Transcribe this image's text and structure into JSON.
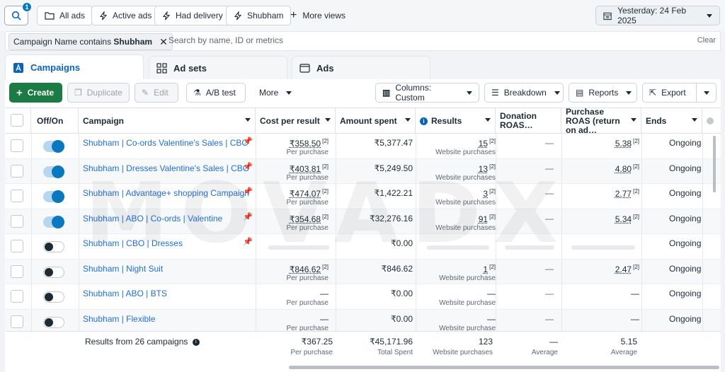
{
  "topbar": {
    "search_badge": "1",
    "chips": [
      {
        "label": "All ads",
        "icon": "folder-icon"
      },
      {
        "label": "Active ads",
        "icon": "lightning-icon"
      },
      {
        "label": "Had delivery",
        "icon": "lightning-icon"
      },
      {
        "label": "Shubham",
        "icon": "lightning-icon"
      }
    ],
    "more_views": "More views",
    "date": "Yesterday: 24 Feb 2025"
  },
  "filter": {
    "prefix": "Campaign Name contains",
    "value": "Shubham",
    "search_placeholder": "Search by name, ID or metrics",
    "clear": "Clear"
  },
  "tabs": [
    {
      "label": "Campaigns",
      "active": true
    },
    {
      "label": "Ad sets",
      "active": false
    },
    {
      "label": "Ads",
      "active": false
    }
  ],
  "toolbar": {
    "create": "Create",
    "duplicate": "Duplicate",
    "edit": "Edit",
    "ab_test": "A/B test",
    "more": "More",
    "columns": "Columns: Custom",
    "breakdown": "Breakdown",
    "reports": "Reports",
    "export": "Export"
  },
  "columns": {
    "offon": "Off/On",
    "campaign": "Campaign",
    "cost": "Cost per result",
    "amount": "Amount spent",
    "results": "Results",
    "donation": "Donation ROAS…",
    "purchase": "Purchase ROAS (return on ad…",
    "ends": "Ends"
  },
  "rows": [
    {
      "name": "Shubham | Co-ords Valentine's Sales | CBO",
      "on": true,
      "pinned": true,
      "cost": "₹358.50",
      "cost_sub": "Per purchase",
      "amount": "₹5,377.47",
      "results": "15",
      "results_sub": "Website purchases",
      "donation": "—",
      "purchase": "5.38",
      "ends": "Ongoing"
    },
    {
      "name": "Shubham | Dresses Valentine's Sales | CBO",
      "on": true,
      "pinned": true,
      "cost": "₹403.81",
      "cost_sub": "Per purchase",
      "amount": "₹5,249.50",
      "results": "13",
      "results_sub": "Website purchases",
      "donation": "—",
      "purchase": "4.80",
      "ends": "Ongoing"
    },
    {
      "name": "Shubham | Advantage+ shopping Campaign",
      "on": true,
      "pinned": true,
      "cost": "₹474.07",
      "cost_sub": "Per purchase",
      "amount": "₹1,422.21",
      "results": "3",
      "results_sub": "Website purchases",
      "donation": "—",
      "purchase": "2.77",
      "ends": "Ongoing"
    },
    {
      "name": "Shubham | ABO | Co-ords | Valentine",
      "on": true,
      "pinned": true,
      "cost": "₹354.68",
      "cost_sub": "Per purchase",
      "amount": "₹32,276.16",
      "results": "91",
      "results_sub": "Website purchases",
      "donation": "—",
      "purchase": "5.34",
      "ends": "Ongoing"
    },
    {
      "name": "Shubham | CBO | Dresses",
      "on": false,
      "pinned": true,
      "cost": "",
      "cost_sub": "",
      "amount": "₹0.00",
      "results": "",
      "results_sub": "",
      "donation": "",
      "purchase": "",
      "ends": "Ongoing"
    },
    {
      "name": "Shubham | Night Suit",
      "on": false,
      "pinned": false,
      "cost": "₹846.62",
      "cost_sub": "Per purchase",
      "amount": "₹846.62",
      "results": "1",
      "results_sub": "Website purchase",
      "donation": "—",
      "purchase": "2.47",
      "ends": "Ongoing"
    },
    {
      "name": "Shubham | ABO | BTS",
      "on": false,
      "pinned": false,
      "cost": "—",
      "cost_sub": "Per purchase",
      "amount": "₹0.00",
      "results": "—",
      "results_sub": "Website purchase",
      "donation": "—",
      "purchase": "—",
      "ends": "Ongoing"
    },
    {
      "name": "Shubham | Flexible",
      "on": false,
      "pinned": false,
      "cost": "—",
      "cost_sub": "Per purchase",
      "amount": "₹0.00",
      "results": "—",
      "results_sub": "Website purchase",
      "donation": "—",
      "purchase": "—",
      "ends": "Ongoing"
    }
  ],
  "footer": {
    "label": "Results from 26 campaigns",
    "cost": "₹367.25",
    "cost_sub": "Per purchase",
    "amount": "₹45,171.96",
    "amount_sub": "Total Spent",
    "results": "123",
    "results_sub": "Website purchases",
    "donation": "—",
    "donation_sub": "Average",
    "purchase": "5.15",
    "purchase_sub": "Average"
  },
  "colors": {
    "accent": "#0a78be",
    "create": "#1a7c44",
    "link": "#216fdb"
  }
}
